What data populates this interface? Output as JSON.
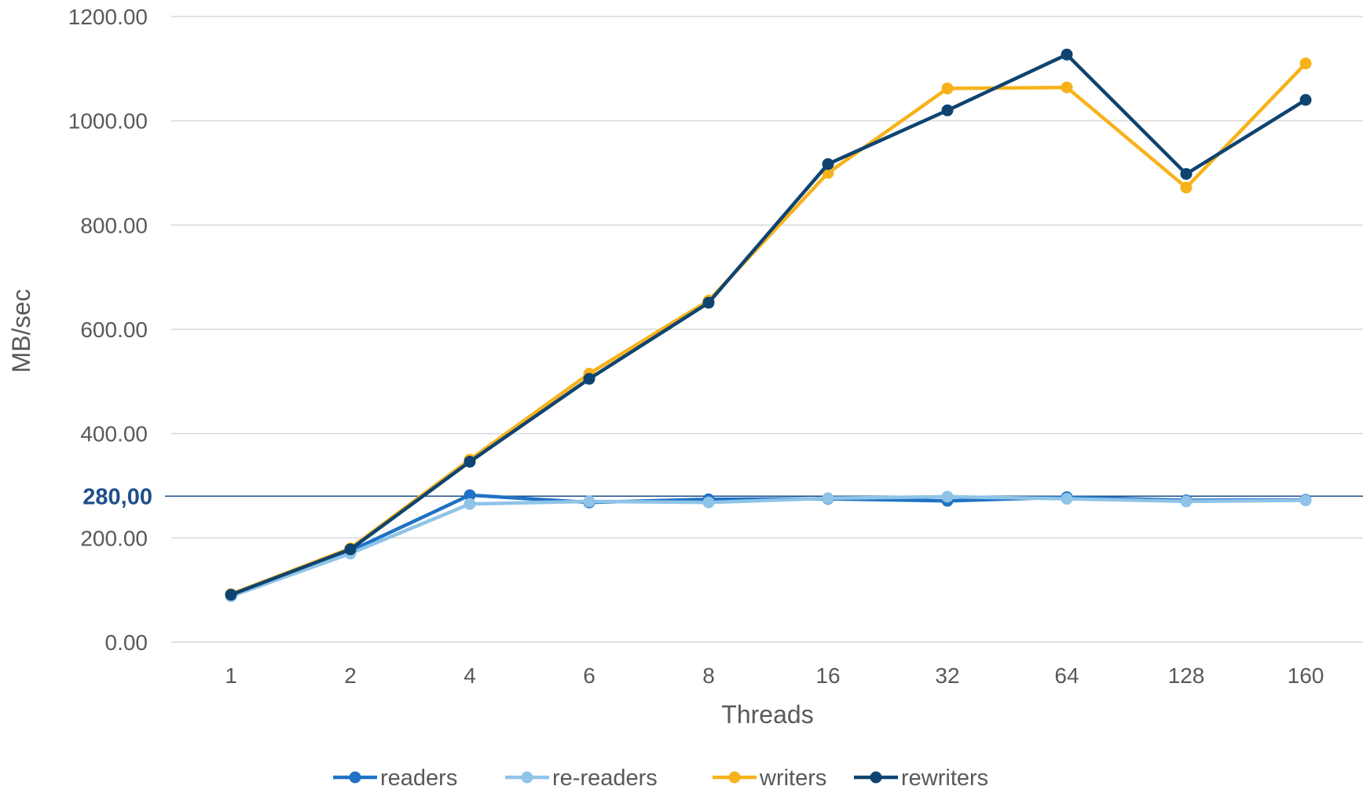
{
  "chart_data": {
    "type": "line",
    "title": "",
    "xlabel": "Threads",
    "ylabel": "MB/sec",
    "categories": [
      "1",
      "2",
      "4",
      "6",
      "8",
      "16",
      "32",
      "64",
      "128",
      "160"
    ],
    "y_ticks": [
      "0.00",
      "200.00",
      "400.00",
      "600.00",
      "800.00",
      "1000.00",
      "1200.00"
    ],
    "ylim": [
      0,
      1200
    ],
    "grid": true,
    "legend_position": "bottom",
    "reference_line": {
      "value": 280,
      "label": "280,00",
      "color": "#1F4E8C"
    },
    "series": [
      {
        "name": "readers",
        "color": "#1F72C4",
        "values": [
          90,
          175,
          282,
          268,
          274,
          275,
          271,
          278,
          272,
          273
        ]
      },
      {
        "name": "re-readers",
        "color": "#8FC4E8",
        "values": [
          88,
          170,
          265,
          270,
          268,
          276,
          279,
          275,
          270,
          272
        ]
      },
      {
        "name": "writers",
        "color": "#F7B21B",
        "values": [
          92,
          180,
          350,
          515,
          655,
          900,
          1062,
          1064,
          872,
          1110
        ]
      },
      {
        "name": "rewriters",
        "color": "#0F4470",
        "values": [
          91,
          178,
          346,
          505,
          651,
          917,
          1020,
          1127,
          898,
          1040
        ]
      }
    ]
  }
}
